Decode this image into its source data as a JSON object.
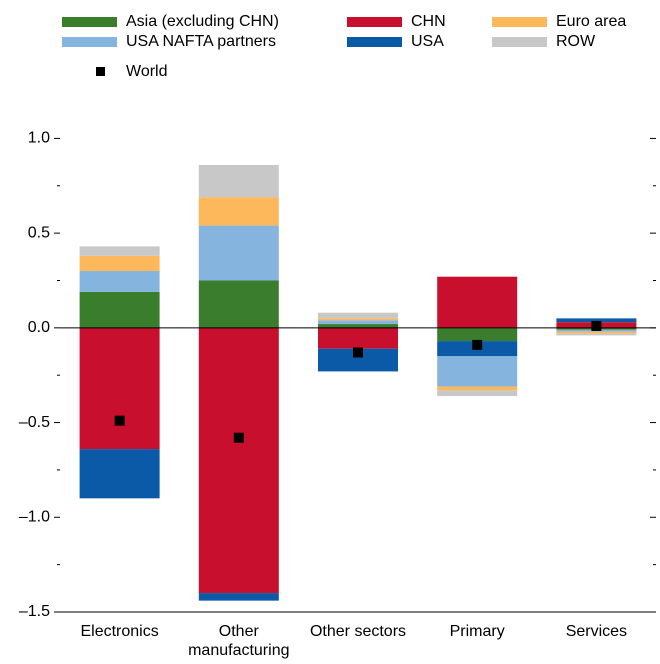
{
  "chart_data": {
    "type": "stacked_bar",
    "categories": [
      "Electronics",
      "Other manufacturing",
      "Other sectors",
      "Primary",
      "Services"
    ],
    "series": [
      {
        "name": "CHN",
        "color": "#c8102e",
        "values": [
          -0.64,
          -1.4,
          -0.11,
          0.27,
          0.03
        ]
      },
      {
        "name": "Asia (excluding CHN)",
        "color": "#3a7d2c",
        "values": [
          0.19,
          0.25,
          0.02,
          -0.07,
          -0.01
        ]
      },
      {
        "name": "USA",
        "color": "#0a5aa8",
        "values": [
          -0.26,
          -0.04,
          -0.12,
          -0.08,
          0.02
        ]
      },
      {
        "name": "USA NAFTA partners",
        "color": "#85b4de",
        "values": [
          0.11,
          0.29,
          0.02,
          -0.16,
          -0.01
        ]
      },
      {
        "name": "Euro area",
        "color": "#fdb85c",
        "values": [
          0.08,
          0.15,
          0.01,
          -0.02,
          -0.01
        ]
      },
      {
        "name": "ROW",
        "color": "#c8c8c8",
        "values": [
          0.05,
          0.17,
          0.03,
          -0.03,
          -0.01
        ]
      }
    ],
    "markers": {
      "name": "World",
      "color": "#000000",
      "values": [
        -0.49,
        -0.58,
        -0.13,
        -0.09,
        0.01
      ]
    },
    "ylim": [
      -1.5,
      1.15
    ],
    "yticks": [
      {
        "value": 1.0,
        "label": "1.0"
      },
      {
        "value": 0.5,
        "label": "0.5"
      },
      {
        "value": 0,
        "label": "0.0"
      },
      {
        "value": -0.5,
        "label": "–0.5"
      },
      {
        "value": -1.0,
        "label": "–1.0"
      },
      {
        "value": -1.5,
        "label": "–1.5"
      }
    ],
    "minor_yticks": [
      0.75,
      0.25,
      -0.25,
      -0.75,
      -1.25
    ]
  }
}
